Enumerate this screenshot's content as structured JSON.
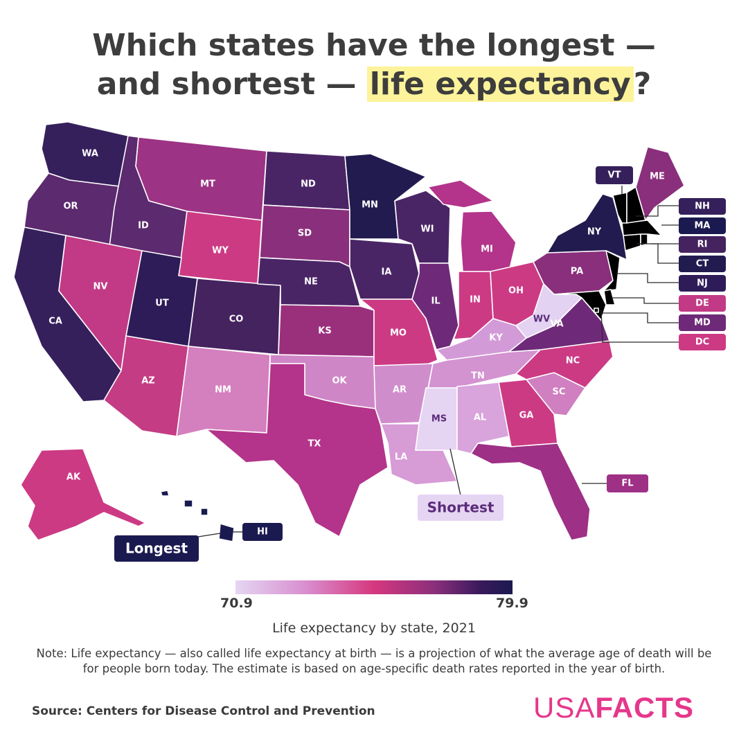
{
  "title": {
    "line1": "Which states have the longest —",
    "line2_prefix": "and shortest — ",
    "line2_highlight": "life expectancy",
    "line2_suffix": "?"
  },
  "colors": {
    "highlight": "#fdf39a",
    "logo": "#e5378b",
    "scale_low": "#e5d6f2",
    "scale_high": "#1a1a50"
  },
  "states": {
    "WA": {
      "label": "WA",
      "color": "#35205c"
    },
    "OR": {
      "label": "OR",
      "color": "#5c2a6e"
    },
    "CA": {
      "label": "CA",
      "color": "#35205c"
    },
    "ID": {
      "label": "ID",
      "color": "#5c2a6e"
    },
    "NV": {
      "label": "NV",
      "color": "#c23a86"
    },
    "MT": {
      "label": "MT",
      "color": "#9c3384"
    },
    "WY": {
      "label": "WY",
      "color": "#cc3a84"
    },
    "UT": {
      "label": "UT",
      "color": "#2e1c58"
    },
    "AZ": {
      "label": "AZ",
      "color": "#c43c84"
    },
    "CO": {
      "label": "CO",
      "color": "#44235f"
    },
    "NM": {
      "label": "NM",
      "color": "#d47fbe"
    },
    "ND": {
      "label": "ND",
      "color": "#4a2566"
    },
    "SD": {
      "label": "SD",
      "color": "#8a2f7c"
    },
    "NE": {
      "label": "NE",
      "color": "#4a2566"
    },
    "KS": {
      "label": "KS",
      "color": "#9a2f7c"
    },
    "OK": {
      "label": "OK",
      "color": "#cf86c6"
    },
    "TX": {
      "label": "TX",
      "color": "#b3348a"
    },
    "MN": {
      "label": "MN",
      "color": "#221b4f"
    },
    "IA": {
      "label": "IA",
      "color": "#4a2566"
    },
    "MO": {
      "label": "MO",
      "color": "#cc3a84"
    },
    "AR": {
      "label": "AR",
      "color": "#d08dcc"
    },
    "LA": {
      "label": "LA",
      "color": "#d79bd6"
    },
    "WI": {
      "label": "WI",
      "color": "#4a2566"
    },
    "IL": {
      "label": "IL",
      "color": "#6e2a78"
    },
    "MI": {
      "label": "MI",
      "color": "#b3348a"
    },
    "IN": {
      "label": "IN",
      "color": "#cc3a84"
    },
    "OH": {
      "label": "OH",
      "color": "#cc3a84"
    },
    "KY": {
      "label": "KY",
      "color": "#d39ad8"
    },
    "TN": {
      "label": "TN",
      "color": "#d392d0"
    },
    "MS": {
      "label": "MS",
      "color": "#e6d4f3"
    },
    "AL": {
      "label": "AL",
      "color": "#d9a3dc"
    },
    "GA": {
      "label": "GA",
      "color": "#cc3a84"
    },
    "FL": {
      "label": "FL",
      "color": "#9e3086"
    },
    "SC": {
      "label": "SC",
      "color": "#d07fc0"
    },
    "NC": {
      "label": "NC",
      "color": "#cc3a84"
    },
    "VA": {
      "label": "VA",
      "color": "#6e2a78"
    },
    "WV": {
      "label": "WV",
      "color": "#e3d2f1"
    },
    "PA": {
      "label": "PA",
      "color": "#8a2f7c"
    },
    "NY": {
      "label": "NY",
      "color": "#221b4f"
    },
    "ME": {
      "label": "ME",
      "color": "#8a2f7c"
    },
    "AK": {
      "label": "AK",
      "color": "#cc3a84"
    },
    "HI": {
      "label": "HI",
      "color": "#1b1a50"
    }
  },
  "callouts": {
    "VT": {
      "label": "VT",
      "color": "#35205c"
    },
    "NH": {
      "label": "NH",
      "color": "#35205c"
    },
    "MA": {
      "label": "MA",
      "color": "#1b1a50"
    },
    "RI": {
      "label": "RI",
      "color": "#44235f"
    },
    "CT": {
      "label": "CT",
      "color": "#221b4f"
    },
    "NJ": {
      "label": "NJ",
      "color": "#2e1c58"
    },
    "DE": {
      "label": "DE",
      "color": "#c23a86"
    },
    "MD": {
      "label": "MD",
      "color": "#6e2a78"
    },
    "DC": {
      "label": "DC",
      "color": "#cc3a84"
    },
    "FL": {
      "label": "FL",
      "color": "#9e3086"
    },
    "HI": {
      "label": "HI",
      "color": "#1b1a50"
    }
  },
  "annotations": {
    "longest": "Longest",
    "shortest": "Shortest"
  },
  "legend": {
    "min": "70.9",
    "max": "79.9",
    "title": "Life expectancy by state, 2021"
  },
  "note": "Note: Life expectancy — also called life expectancy at birth — is a projection of what the average age of death will be for people born today. The estimate is based on age-specific death rates reported in the year of birth.",
  "source": "Source: Centers for Disease Control and Prevention",
  "logo": {
    "light": "USA",
    "bold": "FACTS"
  }
}
